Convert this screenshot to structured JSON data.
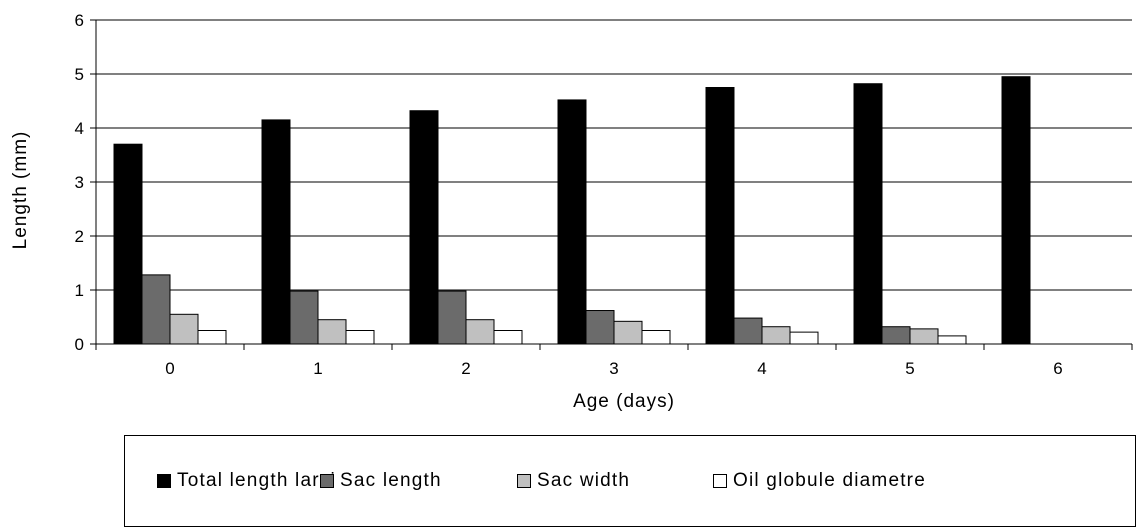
{
  "chart_data": {
    "type": "bar",
    "xlabel": "Age (days)",
    "ylabel": "Length (mm)",
    "ylim": [
      0,
      6
    ],
    "yticks": [
      "0",
      "1",
      "2",
      "3",
      "4",
      "5",
      "6"
    ],
    "categories": [
      "0",
      "1",
      "2",
      "3",
      "4",
      "5",
      "6"
    ],
    "grid": "horizontal",
    "legend_position": "bottom",
    "series": [
      {
        "name": "Total length larvi",
        "color": "#000000",
        "values": [
          3.7,
          4.15,
          4.32,
          4.52,
          4.75,
          4.82,
          4.95
        ]
      },
      {
        "name": "Sac length",
        "color": "#6b6b6b",
        "values": [
          1.28,
          0.98,
          0.98,
          0.62,
          0.48,
          0.32,
          0
        ]
      },
      {
        "name": "Sac width",
        "color": "#c0c0c0",
        "values": [
          0.55,
          0.45,
          0.45,
          0.42,
          0.32,
          0.28,
          0
        ]
      },
      {
        "name": "Oil globule diametre",
        "color": "#ffffff",
        "values": [
          0.25,
          0.25,
          0.25,
          0.25,
          0.22,
          0.15,
          0
        ]
      }
    ]
  }
}
